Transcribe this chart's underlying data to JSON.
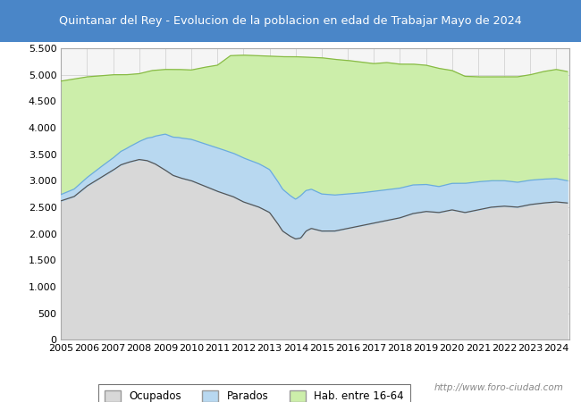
{
  "title": "Quintanar del Rey - Evolucion de la poblacion en edad de Trabajar Mayo de 2024",
  "title_bg": "#4a86c8",
  "title_color": "#ffffff",
  "ylim": [
    0,
    5500
  ],
  "yticks": [
    0,
    500,
    1000,
    1500,
    2000,
    2500,
    3000,
    3500,
    4000,
    4500,
    5000,
    5500
  ],
  "background_color": "#ffffff",
  "plot_bg": "#f5f5f5",
  "watermark": "http://www.foro-ciudad.com",
  "legend_labels": [
    "Ocupados",
    "Parados",
    "Hab. entre 16-64"
  ],
  "ocupados_line": "#555555",
  "ocupados_fill": "#d8d8d8",
  "parados_line": "#6aacdc",
  "parados_fill": "#b8d8f0",
  "hab_line": "#88bb44",
  "hab_fill": "#cceeaa",
  "hab_x": [
    2005.0,
    2005.5,
    2006.0,
    2006.5,
    2007.0,
    2007.5,
    2008.0,
    2008.5,
    2009.0,
    2009.5,
    2010.0,
    2010.5,
    2011.0,
    2011.5,
    2012.0,
    2012.5,
    2013.0,
    2013.5,
    2014.0,
    2014.5,
    2015.0,
    2015.5,
    2016.0,
    2016.5,
    2017.0,
    2017.5,
    2018.0,
    2018.5,
    2019.0,
    2019.5,
    2020.0,
    2020.5,
    2021.0,
    2021.5,
    2022.0,
    2022.5,
    2023.0,
    2023.5,
    2024.0,
    2024.42
  ],
  "hab_y": [
    4880,
    4920,
    4960,
    4980,
    5000,
    5000,
    5020,
    5080,
    5100,
    5100,
    5090,
    5140,
    5180,
    5360,
    5370,
    5360,
    5350,
    5340,
    5340,
    5330,
    5320,
    5290,
    5270,
    5240,
    5210,
    5230,
    5200,
    5200,
    5180,
    5120,
    5080,
    4970,
    4960,
    4960,
    4960,
    4960,
    5000,
    5060,
    5100,
    5060
  ],
  "ocu_x": [
    2005.0,
    2005.5,
    2006.0,
    2006.5,
    2007.0,
    2007.3,
    2007.6,
    2008.0,
    2008.3,
    2008.6,
    2009.0,
    2009.3,
    2009.6,
    2010.0,
    2010.5,
    2011.0,
    2011.3,
    2011.6,
    2012.0,
    2012.3,
    2012.6,
    2013.0,
    2013.3,
    2013.5,
    2013.8,
    2014.0,
    2014.2,
    2014.4,
    2014.6,
    2015.0,
    2015.5,
    2016.0,
    2016.5,
    2017.0,
    2017.5,
    2018.0,
    2018.5,
    2019.0,
    2019.5,
    2020.0,
    2020.5,
    2021.0,
    2021.5,
    2022.0,
    2022.5,
    2023.0,
    2023.5,
    2024.0,
    2024.42
  ],
  "ocu_y": [
    2620,
    2700,
    2900,
    3050,
    3200,
    3300,
    3350,
    3400,
    3380,
    3320,
    3200,
    3100,
    3050,
    3000,
    2900,
    2800,
    2750,
    2700,
    2600,
    2550,
    2500,
    2400,
    2200,
    2050,
    1950,
    1900,
    1920,
    2050,
    2100,
    2050,
    2050,
    2100,
    2150,
    2200,
    2250,
    2300,
    2380,
    2420,
    2400,
    2450,
    2400,
    2450,
    2500,
    2520,
    2500,
    2550,
    2580,
    2600,
    2580
  ],
  "par_x": [
    2005.0,
    2005.5,
    2006.0,
    2006.5,
    2007.0,
    2007.5,
    2008.0,
    2008.5,
    2009.0,
    2009.5,
    2010.0,
    2010.5,
    2011.0,
    2011.5,
    2012.0,
    2012.5,
    2013.0,
    2013.5,
    2014.0,
    2014.2,
    2014.5,
    2015.0,
    2015.5,
    2016.0,
    2016.5,
    2017.0,
    2017.5,
    2018.0,
    2018.5,
    2019.0,
    2019.5,
    2020.0,
    2020.5,
    2021.0,
    2021.5,
    2022.0,
    2022.5,
    2023.0,
    2023.5,
    2024.0,
    2024.42
  ],
  "par_y": [
    120,
    140,
    160,
    200,
    230,
    270,
    340,
    480,
    680,
    750,
    780,
    800,
    820,
    820,
    830,
    820,
    810,
    790,
    750,
    800,
    750,
    700,
    680,
    650,
    620,
    600,
    580,
    560,
    540,
    510,
    490,
    500,
    550,
    530,
    500,
    480,
    470,
    460,
    450,
    440,
    420
  ]
}
